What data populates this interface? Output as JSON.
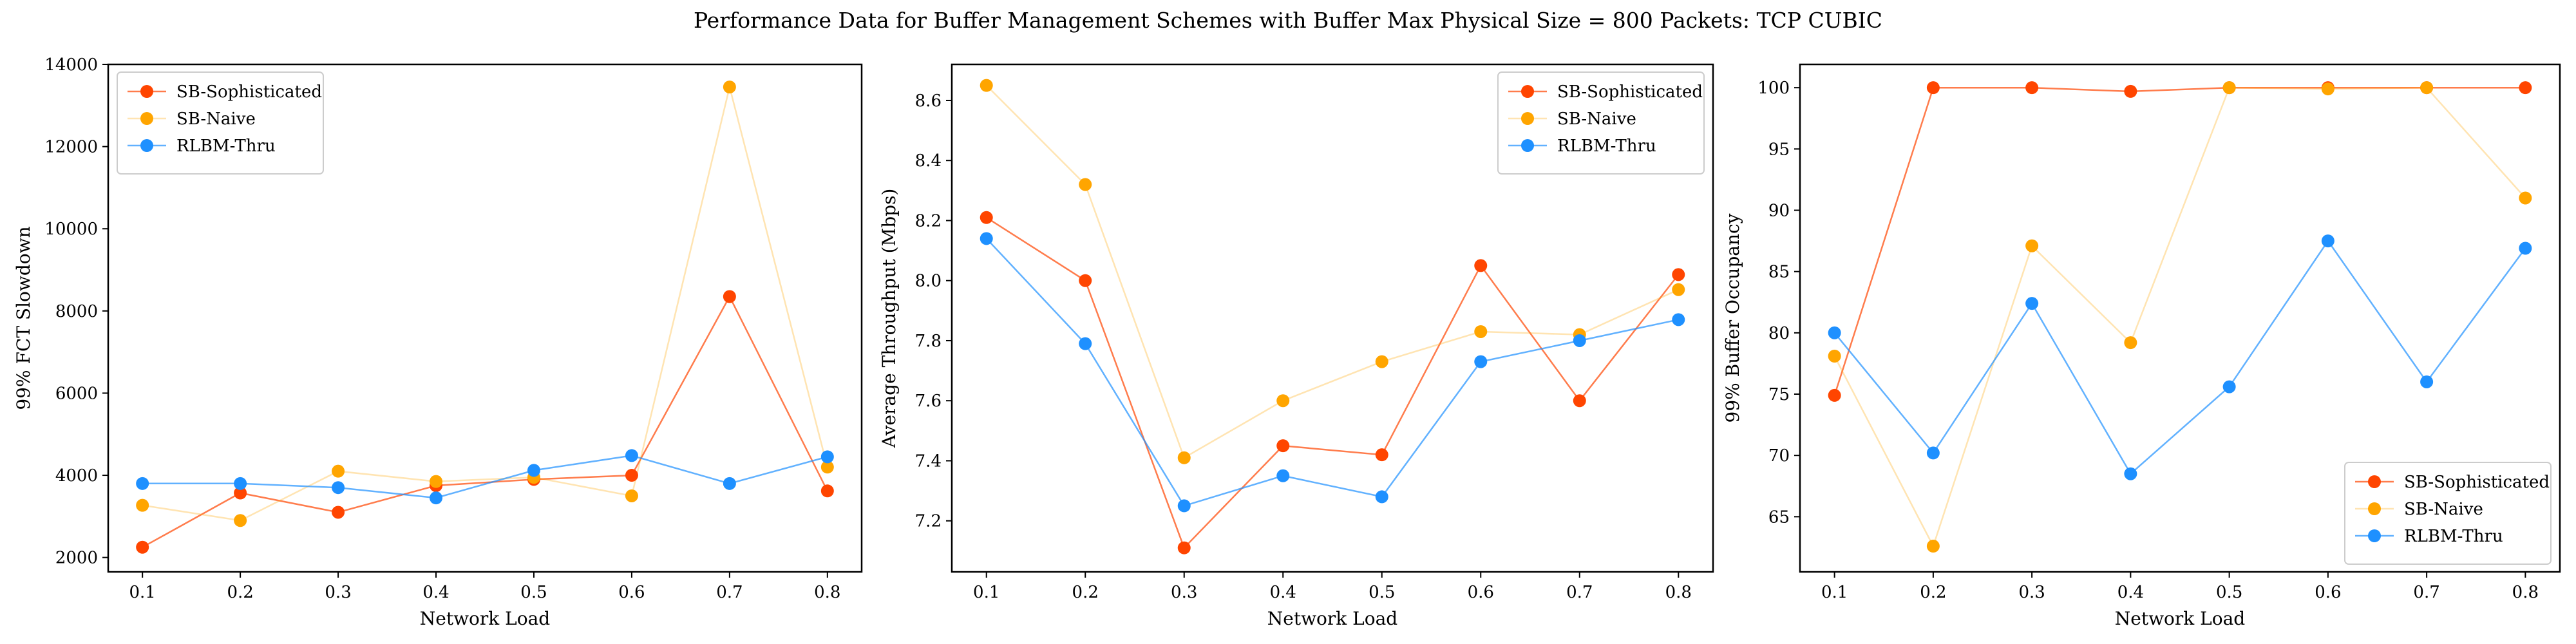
{
  "figure": {
    "title": "Performance Data for Buffer Management Schemes with Buffer Max Physical Size = 800 Packets: TCP CUBIC"
  },
  "colors": {
    "SB-Sophisticated": "#FF4500",
    "SB-Naive": "#FFA500",
    "RLBM-Thru": "#1E90FF"
  },
  "chart_data": [
    {
      "type": "line",
      "xlabel": "Network Load",
      "ylabel": "99% FCT Slowdown",
      "x": [
        0.1,
        0.2,
        0.3,
        0.4,
        0.5,
        0.6,
        0.7,
        0.8
      ],
      "xticks": [
        "0.1",
        "0.2",
        "0.3",
        "0.4",
        "0.5",
        "0.6",
        "0.7",
        "0.8"
      ],
      "xlim": [
        0.065,
        0.835
      ],
      "ylim": [
        1650,
        14000
      ],
      "yticks": [
        2000,
        4000,
        6000,
        8000,
        10000,
        12000,
        14000
      ],
      "legend": "top-left",
      "series": [
        {
          "name": "SB-Sophisticated",
          "values": [
            2250,
            3570,
            3100,
            3750,
            3900,
            4000,
            8350,
            3620
          ]
        },
        {
          "name": "SB-Naive",
          "values": [
            3270,
            2900,
            4100,
            3850,
            3950,
            3500,
            13450,
            4200
          ]
        },
        {
          "name": "RLBM-Thru",
          "values": [
            3800,
            3800,
            3700,
            3450,
            4120,
            4480,
            3800,
            4450
          ]
        }
      ]
    },
    {
      "type": "line",
      "xlabel": "Network Load",
      "ylabel": "Average Throughput (Mbps)",
      "x": [
        0.1,
        0.2,
        0.3,
        0.4,
        0.5,
        0.6,
        0.7,
        0.8
      ],
      "xticks": [
        "0.1",
        "0.2",
        "0.3",
        "0.4",
        "0.5",
        "0.6",
        "0.7",
        "0.8"
      ],
      "xlim": [
        0.065,
        0.835
      ],
      "ylim": [
        7.03,
        8.72
      ],
      "yticks": [
        "7.2",
        "7.4",
        "7.6",
        "7.8",
        "8.0",
        "8.2",
        "8.4",
        "8.6"
      ],
      "legend": "top-right",
      "series": [
        {
          "name": "SB-Sophisticated",
          "values": [
            8.21,
            8.0,
            7.11,
            7.45,
            7.42,
            8.05,
            7.6,
            8.02
          ]
        },
        {
          "name": "SB-Naive",
          "values": [
            8.65,
            8.32,
            7.41,
            7.6,
            7.73,
            7.83,
            7.82,
            7.97
          ]
        },
        {
          "name": "RLBM-Thru",
          "values": [
            8.14,
            7.79,
            7.25,
            7.35,
            7.28,
            7.73,
            7.8,
            7.87
          ]
        }
      ]
    },
    {
      "type": "line",
      "xlabel": "Network Load",
      "ylabel": "99% Buffer Occupancy",
      "x": [
        0.1,
        0.2,
        0.3,
        0.4,
        0.5,
        0.6,
        0.7,
        0.8
      ],
      "xticks": [
        "0.1",
        "0.2",
        "0.3",
        "0.4",
        "0.5",
        "0.6",
        "0.7",
        "0.8"
      ],
      "xlim": [
        0.065,
        0.835
      ],
      "ylim": [
        60.5,
        101.9
      ],
      "yticks": [
        65,
        70,
        75,
        80,
        85,
        90,
        95,
        100
      ],
      "legend": "bottom-right",
      "series": [
        {
          "name": "SB-Sophisticated",
          "values": [
            74.9,
            100.0,
            100.0,
            99.7,
            100.0,
            100.0,
            100.0,
            100.0
          ]
        },
        {
          "name": "SB-Naive",
          "values": [
            78.1,
            62.6,
            87.1,
            79.2,
            100.0,
            99.9,
            100.0,
            91.0
          ]
        },
        {
          "name": "RLBM-Thru",
          "values": [
            80.0,
            70.2,
            82.4,
            68.5,
            75.6,
            87.5,
            76.0,
            86.9
          ]
        }
      ]
    }
  ]
}
